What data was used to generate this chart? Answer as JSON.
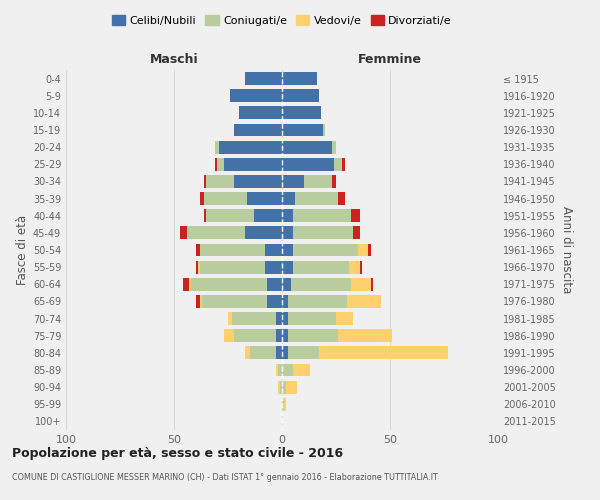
{
  "age_groups": [
    "0-4",
    "5-9",
    "10-14",
    "15-19",
    "20-24",
    "25-29",
    "30-34",
    "35-39",
    "40-44",
    "45-49",
    "50-54",
    "55-59",
    "60-64",
    "65-69",
    "70-74",
    "75-79",
    "80-84",
    "85-89",
    "90-94",
    "95-99",
    "100+"
  ],
  "birth_years": [
    "2011-2015",
    "2006-2010",
    "2001-2005",
    "1996-2000",
    "1991-1995",
    "1986-1990",
    "1981-1985",
    "1976-1980",
    "1971-1975",
    "1966-1970",
    "1961-1965",
    "1956-1960",
    "1951-1955",
    "1946-1950",
    "1941-1945",
    "1936-1940",
    "1931-1935",
    "1926-1930",
    "1921-1925",
    "1916-1920",
    "≤ 1915"
  ],
  "colors": {
    "celibe": "#4472a8",
    "coniugato": "#b8cc9e",
    "vedovo": "#ffd06e",
    "divorziato": "#cc2222"
  },
  "maschi": {
    "celibe": [
      17,
      24,
      20,
      22,
      29,
      27,
      22,
      16,
      13,
      17,
      8,
      8,
      7,
      7,
      3,
      3,
      3,
      0,
      0,
      0,
      0
    ],
    "coniugato": [
      0,
      0,
      0,
      0,
      2,
      3,
      13,
      20,
      22,
      27,
      30,
      30,
      35,
      30,
      20,
      19,
      12,
      2,
      1,
      0,
      0
    ],
    "vedovo": [
      0,
      0,
      0,
      0,
      0,
      0,
      0,
      0,
      0,
      0,
      0,
      1,
      1,
      1,
      2,
      5,
      2,
      1,
      1,
      0,
      0
    ],
    "divorziato": [
      0,
      0,
      0,
      0,
      0,
      1,
      1,
      2,
      1,
      3,
      2,
      1,
      3,
      2,
      0,
      0,
      0,
      0,
      0,
      0,
      0
    ]
  },
  "femmine": {
    "nubile": [
      16,
      17,
      18,
      19,
      23,
      24,
      10,
      6,
      5,
      5,
      5,
      5,
      4,
      3,
      3,
      3,
      3,
      0,
      0,
      0,
      0
    ],
    "coniugata": [
      0,
      0,
      0,
      1,
      2,
      4,
      13,
      20,
      27,
      28,
      30,
      26,
      28,
      27,
      22,
      23,
      14,
      5,
      2,
      1,
      0
    ],
    "vedova": [
      0,
      0,
      0,
      0,
      0,
      0,
      0,
      0,
      0,
      0,
      5,
      5,
      9,
      16,
      8,
      25,
      60,
      8,
      5,
      1,
      0
    ],
    "divorziata": [
      0,
      0,
      0,
      0,
      0,
      1,
      2,
      3,
      4,
      3,
      1,
      1,
      1,
      0,
      0,
      0,
      0,
      0,
      0,
      0,
      0
    ]
  },
  "title": "Popolazione per età, sesso e stato civile - 2016",
  "subtitle": "COMUNE DI CASTIGLIONE MESSER MARINO (CH) - Dati ISTAT 1° gennaio 2016 - Elaborazione TUTTITALIA.IT",
  "xlabel_left": "Maschi",
  "xlabel_right": "Femmine",
  "ylabel_left": "Fasce di età",
  "ylabel_right": "Anni di nascita",
  "xlim": 100,
  "bg_color": "#f0f0f0",
  "grid_color": "#cccccc"
}
